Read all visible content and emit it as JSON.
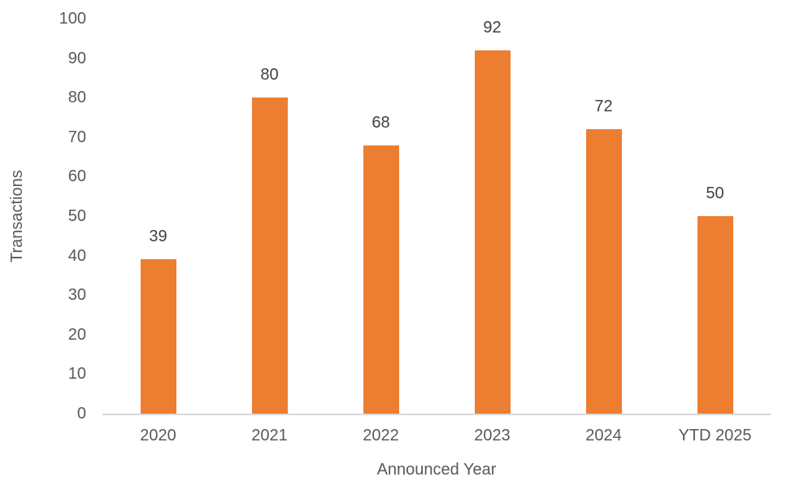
{
  "chart_data": {
    "type": "bar",
    "categories": [
      "2020",
      "2021",
      "2022",
      "2023",
      "2024",
      "YTD 2025"
    ],
    "values": [
      39,
      80,
      68,
      92,
      72,
      50
    ],
    "data_labels": [
      "39",
      "80",
      "68",
      "92",
      "72",
      "50"
    ],
    "title": "",
    "xlabel": "Announced Year",
    "ylabel": "Transactions",
    "ylim": [
      0,
      100
    ],
    "ytick_step": 10,
    "ytick_labels": [
      "0",
      "10",
      "20",
      "30",
      "40",
      "50",
      "60",
      "70",
      "80",
      "90",
      "100"
    ],
    "grid": false,
    "legend": false,
    "colors": {
      "bar": "#ED7D31",
      "data_label": "#404040",
      "axis_label": "#595959",
      "axis_line": "#D9D9D9",
      "background": "#FFFFFF"
    }
  }
}
